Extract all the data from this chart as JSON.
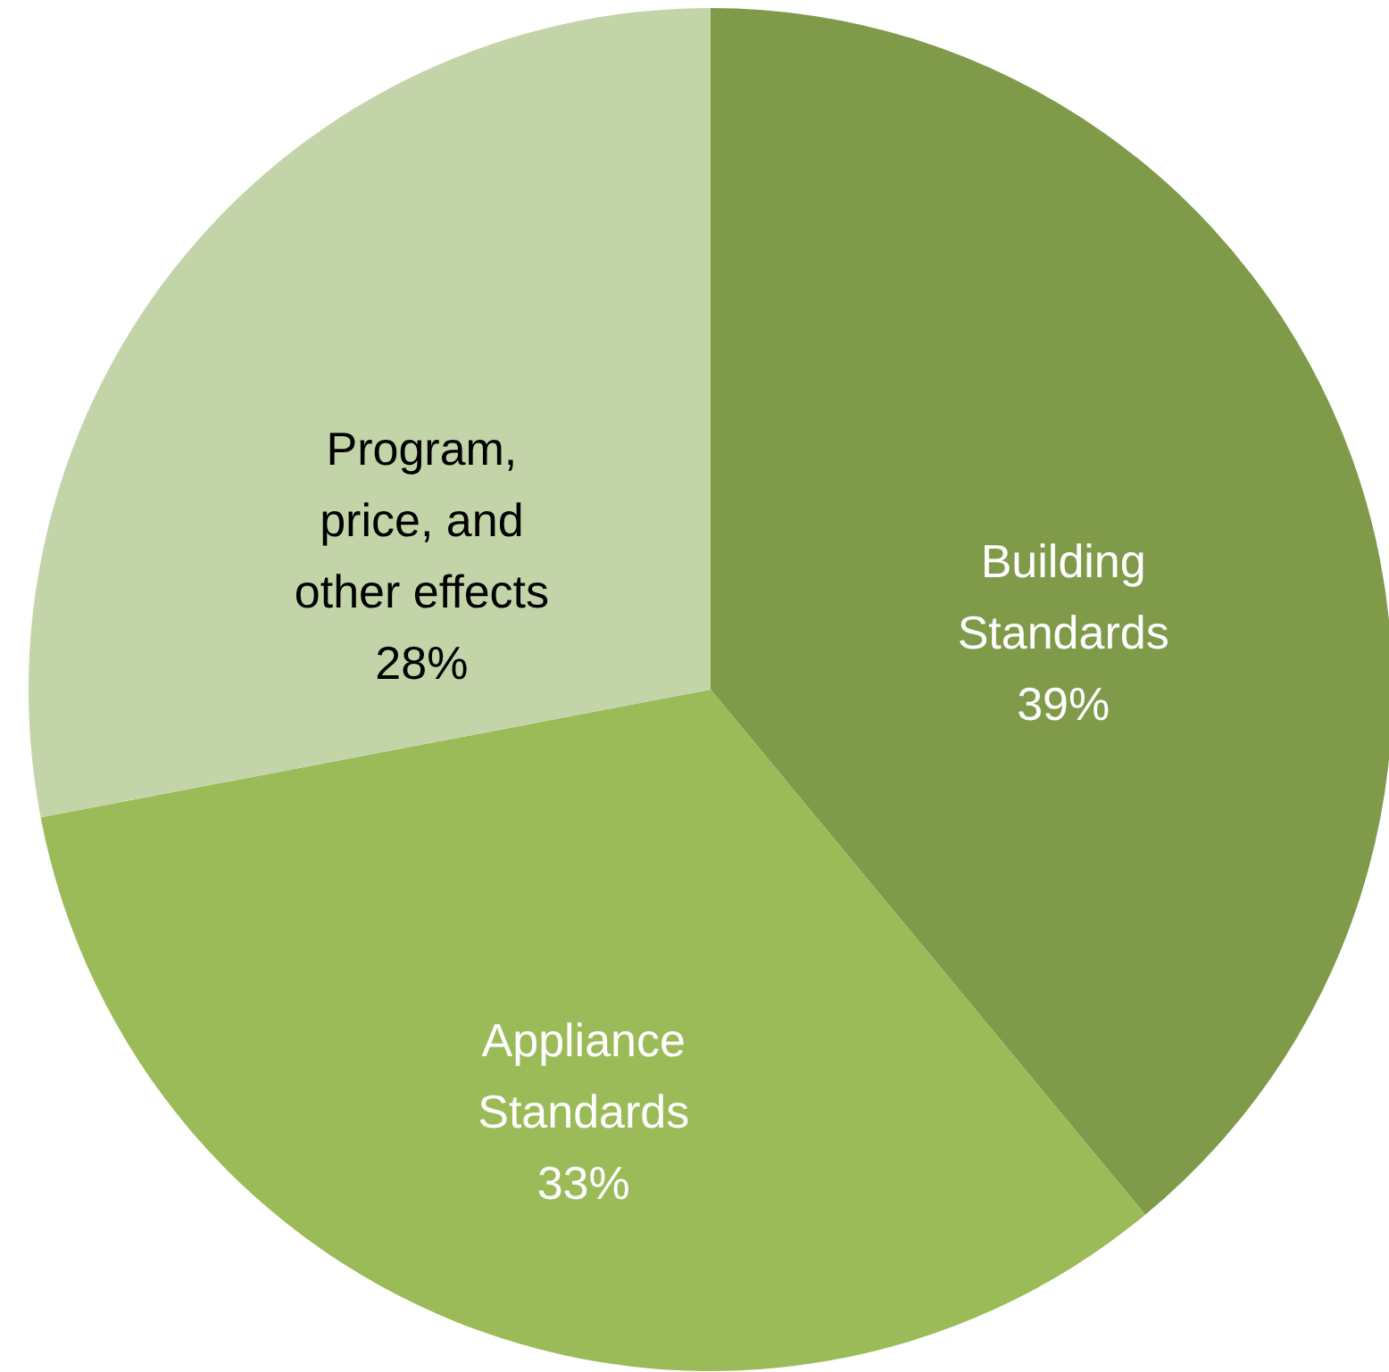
{
  "chart_data": {
    "type": "pie",
    "categories": [
      "Building\nStandards",
      "Appliance\nStandards",
      "Program,\nprice, and\nother effects"
    ],
    "values": [
      39,
      33,
      28
    ],
    "value_labels": [
      "39%",
      "33%",
      "28%"
    ],
    "colors": [
      "#7f9b4a",
      "#9bbb59",
      "#c3d5a8"
    ]
  }
}
